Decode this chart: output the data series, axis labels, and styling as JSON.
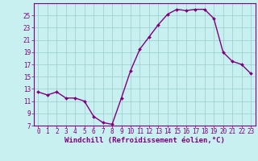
{
  "x": [
    0,
    1,
    2,
    3,
    4,
    5,
    6,
    7,
    8,
    9,
    10,
    11,
    12,
    13,
    14,
    15,
    16,
    17,
    18,
    19,
    20,
    21,
    22,
    23
  ],
  "y": [
    12.5,
    12.0,
    12.5,
    11.5,
    11.5,
    11.0,
    8.5,
    7.5,
    7.2,
    11.5,
    16.0,
    19.5,
    21.5,
    23.5,
    25.2,
    26.0,
    25.8,
    26.0,
    26.0,
    24.5,
    19.0,
    17.5,
    17.0,
    15.5
  ],
  "line_color": "#800080",
  "bg_color": "#c8f0f0",
  "grid_color": "#99cccc",
  "xlabel": "Windchill (Refroidissement éolien,°C)",
  "ylim": [
    7,
    27
  ],
  "xlim_min": -0.5,
  "xlim_max": 23.5,
  "yticks": [
    7,
    9,
    11,
    13,
    15,
    17,
    19,
    21,
    23,
    25
  ],
  "xticks": [
    0,
    1,
    2,
    3,
    4,
    5,
    6,
    7,
    8,
    9,
    10,
    11,
    12,
    13,
    14,
    15,
    16,
    17,
    18,
    19,
    20,
    21,
    22,
    23
  ],
  "tick_color": "#800080",
  "spine_color": "#800080",
  "tick_fontsize": 5.5,
  "xlabel_fontsize": 6.5
}
